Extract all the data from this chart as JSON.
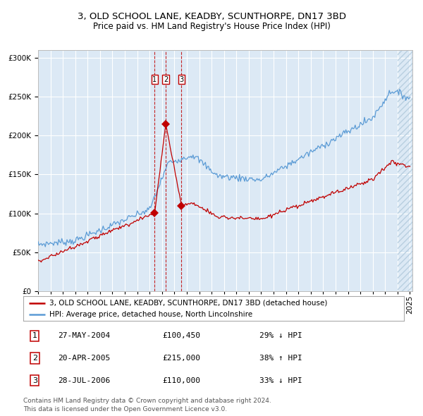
{
  "title": "3, OLD SCHOOL LANE, KEADBY, SCUNTHORPE, DN17 3BD",
  "subtitle": "Price paid vs. HM Land Registry's House Price Index (HPI)",
  "legend_line1": "3, OLD SCHOOL LANE, KEADBY, SCUNTHORPE, DN17 3BD (detached house)",
  "legend_line2": "HPI: Average price, detached house, North Lincolnshire",
  "footer1": "Contains HM Land Registry data © Crown copyright and database right 2024.",
  "footer2": "This data is licensed under the Open Government Licence v3.0.",
  "sale_dates": [
    2004.41,
    2005.3,
    2006.57
  ],
  "sale_prices": [
    100450,
    215000,
    110000
  ],
  "table_rows": [
    {
      "num": 1,
      "date": "27-MAY-2004",
      "price": "£100,450",
      "hpi": "29% ↓ HPI"
    },
    {
      "num": 2,
      "date": "20-APR-2005",
      "price": "£215,000",
      "hpi": "38% ↑ HPI"
    },
    {
      "num": 3,
      "date": "28-JUL-2006",
      "price": "£110,000",
      "hpi": "33% ↓ HPI"
    }
  ],
  "yticks": [
    0,
    50000,
    100000,
    150000,
    200000,
    250000,
    300000
  ],
  "xmin": 1995,
  "xmax": 2025.2,
  "ymin": 0,
  "ymax": 310000,
  "background_color": "#dce9f5",
  "hatch_color": "#b8cfe0",
  "red_color": "#c00000",
  "blue_color": "#5b9bd5",
  "grid_color": "#ffffff",
  "box_color": "#c00000",
  "hatch_start": 2024.0,
  "title_fontsize": 9.5,
  "subtitle_fontsize": 8.5,
  "axis_fontsize": 7.5,
  "legend_fontsize": 7.5,
  "table_fontsize": 8.0,
  "footer_fontsize": 6.5
}
